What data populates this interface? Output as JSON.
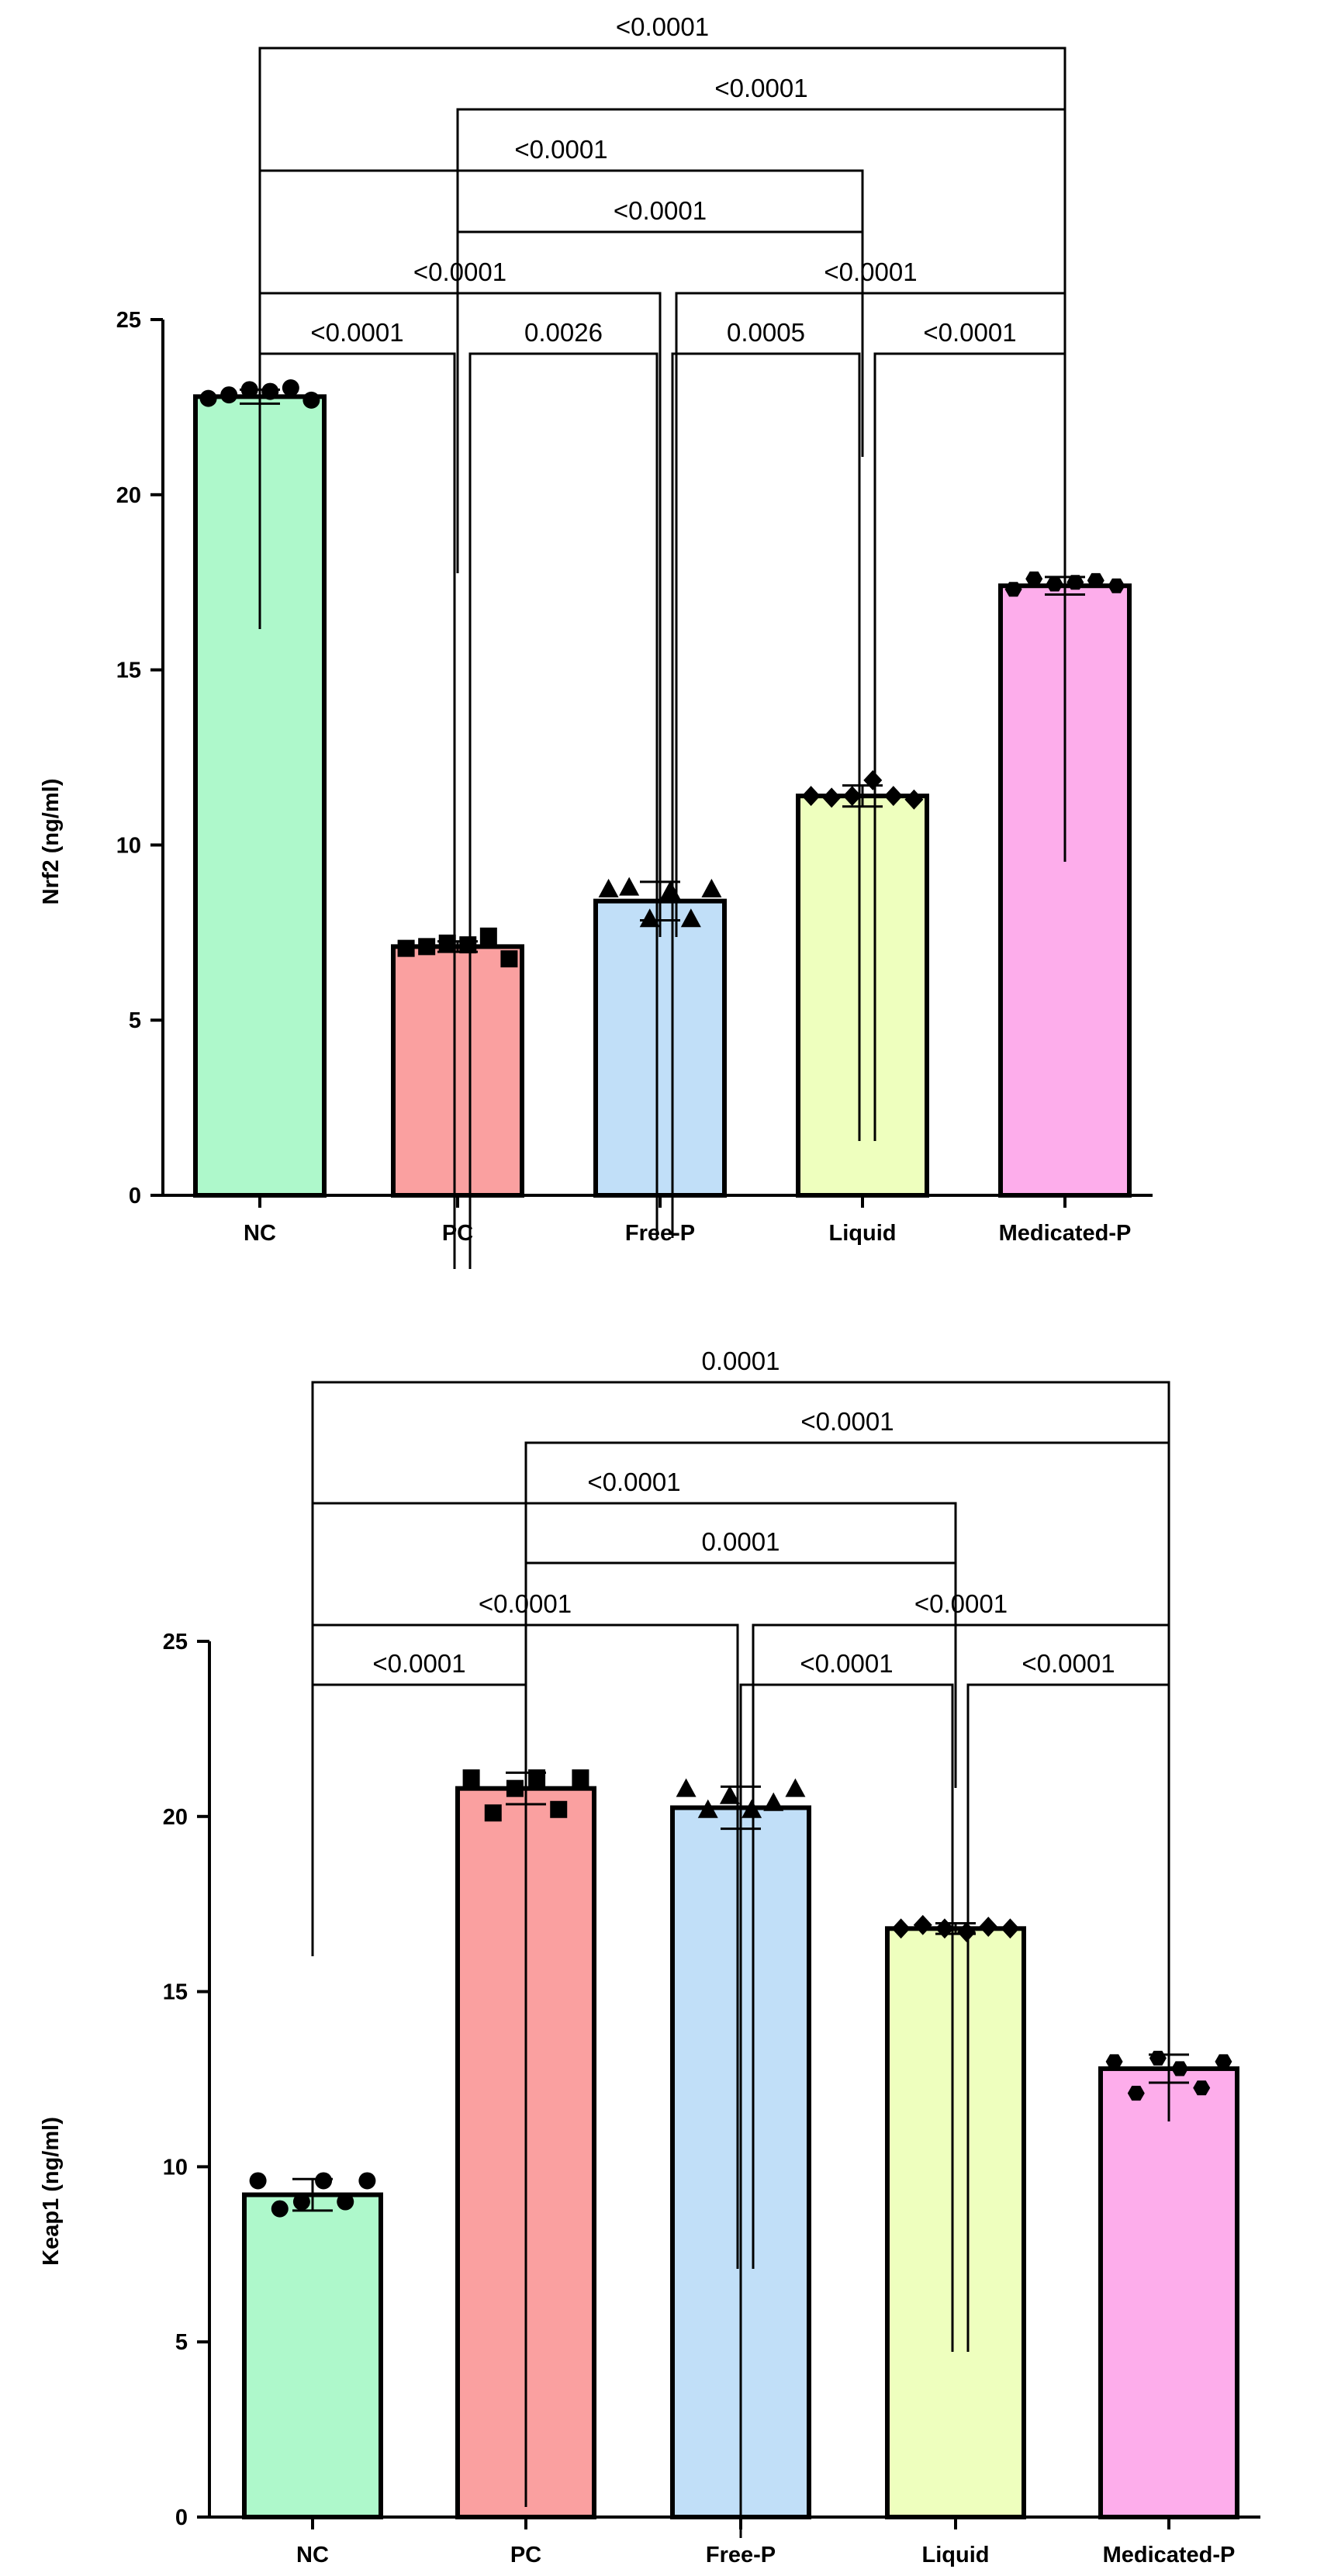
{
  "chart_data": [
    {
      "type": "bar",
      "ylabel": "Nrf2 (ng/ml)",
      "xlabel": "",
      "ylim": [
        0,
        25
      ],
      "yticks": [
        0,
        5,
        10,
        15,
        20,
        25
      ],
      "categories": [
        "NC",
        "PC",
        "Free-P",
        "Liquid",
        "Medicated-P"
      ],
      "values": [
        22.8,
        7.1,
        8.4,
        11.4,
        17.4
      ],
      "errors": [
        0.2,
        0.15,
        0.55,
        0.3,
        0.25
      ],
      "points": [
        [
          22.75,
          22.85,
          23.0,
          22.95,
          23.05,
          22.7
        ],
        [
          7.05,
          7.1,
          7.2,
          7.15,
          7.4,
          6.75
        ],
        [
          8.75,
          8.8,
          7.9,
          8.7,
          7.9,
          8.75
        ],
        [
          11.4,
          11.35,
          11.4,
          11.85,
          11.4,
          11.3
        ],
        [
          17.3,
          17.6,
          17.45,
          17.5,
          17.55,
          17.4
        ]
      ],
      "markers": [
        "circle",
        "square",
        "triangle",
        "diamond",
        "hexagon"
      ],
      "colors": [
        "#aef8cb",
        "#faa0a0",
        "#c1dff8",
        "#eeffbe",
        "#fdadeb"
      ],
      "comparisons": [
        {
          "from": 0,
          "to": 4,
          "label": "<0.0001"
        },
        {
          "from": 1,
          "to": 4,
          "label": "<0.0001"
        },
        {
          "from": 0,
          "to": 3,
          "label": "<0.0001"
        },
        {
          "from": 1,
          "to": 3,
          "label": "<0.0001"
        },
        {
          "from": 0,
          "to": 2,
          "label": "<0.0001"
        },
        {
          "from": 2,
          "to": 4,
          "label": "<0.0001"
        },
        {
          "from": 0,
          "to": 1,
          "label": "<0.0001"
        },
        {
          "from": 1,
          "to": 2,
          "label": "0.0026"
        },
        {
          "from": 2,
          "to": 3,
          "label": "0.0005"
        },
        {
          "from": 3,
          "to": 4,
          "label": "<0.0001"
        }
      ]
    },
    {
      "type": "bar",
      "ylabel": "Keap1 (ng/ml)",
      "xlabel": "",
      "ylim": [
        0,
        25
      ],
      "yticks": [
        0,
        5,
        10,
        15,
        20,
        25
      ],
      "categories": [
        "NC",
        "PC",
        "Free-P",
        "Liquid",
        "Medicated-P"
      ],
      "values": [
        9.2,
        20.8,
        20.25,
        16.8,
        12.8
      ],
      "errors": [
        0.45,
        0.45,
        0.6,
        0.15,
        0.4
      ],
      "points": [
        [
          9.6,
          8.8,
          9.0,
          9.6,
          9.0,
          9.6
        ],
        [
          21.1,
          20.1,
          20.8,
          21.1,
          20.2,
          21.1
        ],
        [
          20.8,
          20.2,
          20.6,
          20.2,
          20.4,
          20.8
        ],
        [
          16.8,
          16.9,
          16.8,
          16.7,
          16.85,
          16.8
        ],
        [
          13.0,
          12.1,
          13.1,
          12.8,
          12.25,
          13.0
        ]
      ],
      "markers": [
        "circle",
        "square",
        "triangle",
        "diamond",
        "hexagon"
      ],
      "colors": [
        "#aef8cb",
        "#faa0a0",
        "#c1dff8",
        "#eeffbe",
        "#fdadeb"
      ],
      "comparisons": [
        {
          "from": 0,
          "to": 4,
          "label": "0.0001"
        },
        {
          "from": 1,
          "to": 4,
          "label": "<0.0001"
        },
        {
          "from": 0,
          "to": 3,
          "label": "<0.0001"
        },
        {
          "from": 1,
          "to": 3,
          "label": "0.0001"
        },
        {
          "from": 0,
          "to": 2,
          "label": "<0.0001"
        },
        {
          "from": 2,
          "to": 4,
          "label": "<0.0001"
        },
        {
          "from": 0,
          "to": 1,
          "label": "<0.0001"
        },
        {
          "from": 2,
          "to": 3,
          "label": "<0.0001"
        },
        {
          "from": 3,
          "to": 4,
          "label": "<0.0001"
        }
      ]
    }
  ]
}
